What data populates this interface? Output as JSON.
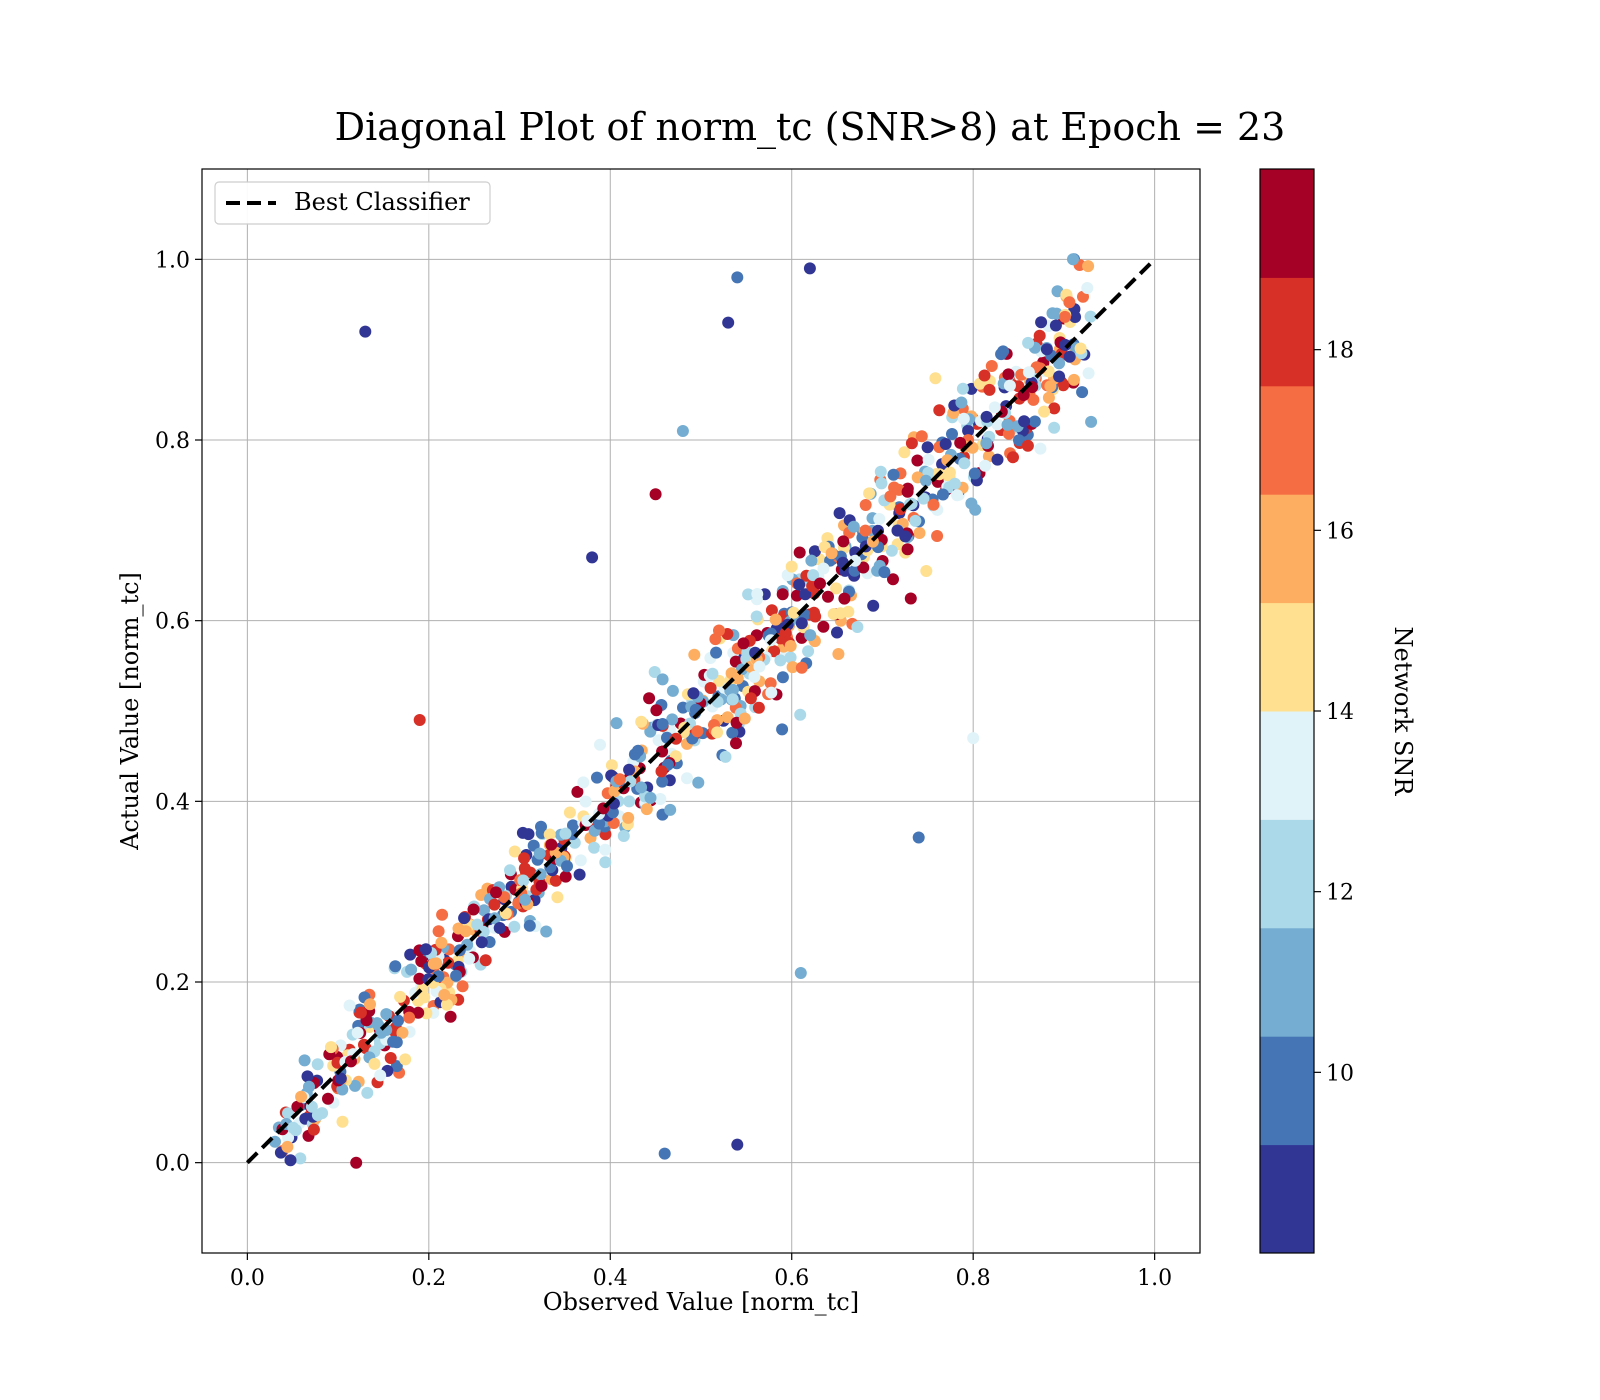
{
  "chart_data": {
    "type": "scatter",
    "title": "Diagonal Plot of norm_tc (SNR>8) at Epoch = 23",
    "xlabel": "Observed Value [norm_tc]",
    "ylabel": "Actual Value [norm_tc]",
    "xlim": [
      -0.05,
      1.05
    ],
    "ylim": [
      -0.1,
      1.1
    ],
    "xticks": [
      "0.0",
      "0.2",
      "0.4",
      "0.6",
      "0.8",
      "1.0"
    ],
    "yticks": [
      "0.0",
      "0.2",
      "0.4",
      "0.6",
      "0.8",
      "1.0"
    ],
    "grid": true,
    "legend": {
      "placement": "upper-left",
      "entries": [
        "Best Classifier"
      ]
    },
    "reference_line": {
      "name": "Best Classifier",
      "x": [
        0,
        1
      ],
      "y": [
        0,
        1
      ],
      "style": "dashed",
      "color": "#000000"
    },
    "colorbar": {
      "label": "Network SNR",
      "min": 8,
      "max": 20,
      "ticks": [
        "10",
        "12",
        "14",
        "16",
        "18"
      ],
      "colors": [
        "#313695",
        "#4575b4",
        "#74add1",
        "#abd9e9",
        "#e0f3f8",
        "#fee090",
        "#fdae61",
        "#f46d43",
        "#d73027",
        "#a50026"
      ]
    },
    "points": {
      "count": 900,
      "color_variable": "Network SNR",
      "clusters": [
        {
          "x": 0.13,
          "y": 0.92,
          "snr": 9
        },
        {
          "x": 0.54,
          "y": 0.98,
          "snr": 10
        },
        {
          "x": 0.53,
          "y": 0.93,
          "snr": 9
        },
        {
          "x": 0.62,
          "y": 0.99,
          "snr": 9
        },
        {
          "x": 0.38,
          "y": 0.67,
          "snr": 9
        },
        {
          "x": 0.45,
          "y": 0.74,
          "snr": 19
        },
        {
          "x": 0.48,
          "y": 0.81,
          "snr": 11
        },
        {
          "x": 0.74,
          "y": 0.36,
          "snr": 10
        },
        {
          "x": 0.54,
          "y": 0.02,
          "snr": 9
        },
        {
          "x": 0.46,
          "y": 0.01,
          "snr": 10
        },
        {
          "x": 0.12,
          "y": 0.0,
          "snr": 19
        },
        {
          "x": 0.19,
          "y": 0.49,
          "snr": 18
        },
        {
          "x": 0.61,
          "y": 0.21,
          "snr": 11
        },
        {
          "x": 0.8,
          "y": 0.47,
          "snr": 13
        },
        {
          "x": 0.91,
          "y": 1.0,
          "snr": 11
        },
        {
          "x": 0.93,
          "y": 0.82,
          "snr": 11
        }
      ]
    }
  }
}
